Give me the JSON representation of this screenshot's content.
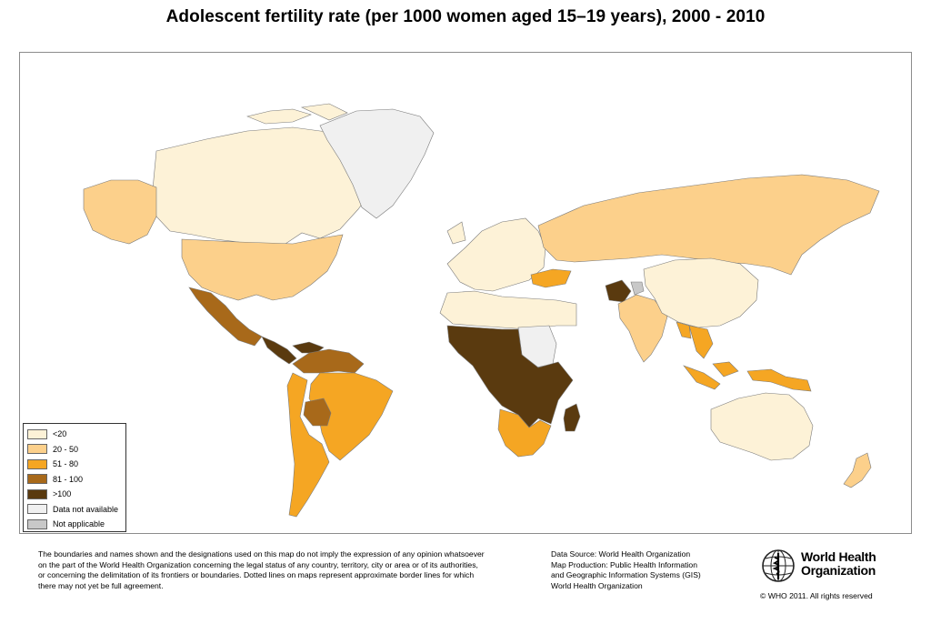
{
  "title": "Adolescent fertility rate (per 1000 women aged 15–19 years), 2000 - 2010",
  "legend": {
    "items": [
      {
        "label": "<20",
        "color": "#fdf2d7"
      },
      {
        "label": "20 - 50",
        "color": "#fcd08b"
      },
      {
        "label": "51 - 80",
        "color": "#f5a623"
      },
      {
        "label": "81 - 100",
        "color": "#a8691a"
      },
      {
        "label": ">100",
        "color": "#5a3a0f"
      },
      {
        "label": "Data not available",
        "color": "#f0f0f0"
      },
      {
        "label": "Not applicable",
        "color": "#c8c8c8"
      }
    ]
  },
  "regions": [
    {
      "name": "Canada",
      "category": "<20"
    },
    {
      "name": "Greenland",
      "category": "Data not available"
    },
    {
      "name": "Alaska",
      "category": "20 - 50"
    },
    {
      "name": "United States",
      "category": "20 - 50"
    },
    {
      "name": "Mexico",
      "category": "81 - 100"
    },
    {
      "name": "Central America",
      "category": ">100"
    },
    {
      "name": "Venezuela",
      "category": "81 - 100"
    },
    {
      "name": "Brazil",
      "category": "51 - 80"
    },
    {
      "name": "Bolivia",
      "category": "81 - 100"
    },
    {
      "name": "Southern Cone",
      "category": "51 - 80"
    },
    {
      "name": "Western Europe",
      "category": "<20"
    },
    {
      "name": "Russia",
      "category": "20 - 50"
    },
    {
      "name": "North Africa",
      "category": "<20"
    },
    {
      "name": "Sudan",
      "category": "Data not available"
    },
    {
      "name": "Sub-Saharan Africa",
      "category": ">100"
    },
    {
      "name": "Southern Africa",
      "category": "51 - 80"
    },
    {
      "name": "Madagascar",
      "category": ">100"
    },
    {
      "name": "Turkey",
      "category": "51 - 80"
    },
    {
      "name": "Afghanistan",
      "category": ">100"
    },
    {
      "name": "Kashmir",
      "category": "Not applicable"
    },
    {
      "name": "India",
      "category": "20 - 50"
    },
    {
      "name": "China",
      "category": "<20"
    },
    {
      "name": "Southeast Asia",
      "category": "51 - 80"
    },
    {
      "name": "Indonesia",
      "category": "51 - 80"
    },
    {
      "name": "Australia",
      "category": "<20"
    },
    {
      "name": "New Zealand",
      "category": "20 - 50"
    }
  ],
  "disclaimer": [
    "The boundaries and names shown and the designations used on this map do not imply the expression of any opinion whatsoever",
    "on the part of the World Health Organization concerning the legal status of any country, territory, city or area or of its authorities,",
    "or concerning the delimitation of its frontiers or boundaries.  Dotted lines on maps represent approximate border lines for which",
    "there may not yet be full agreement."
  ],
  "source": [
    "Data Source: World Health Organization",
    "Map Production: Public Health Information",
    "and Geographic Information Systems (GIS)",
    "World Health Organization"
  ],
  "logo": {
    "line1": "World Health",
    "line2": "Organization"
  },
  "copyright": "© WHO 2011. All rights reserved"
}
